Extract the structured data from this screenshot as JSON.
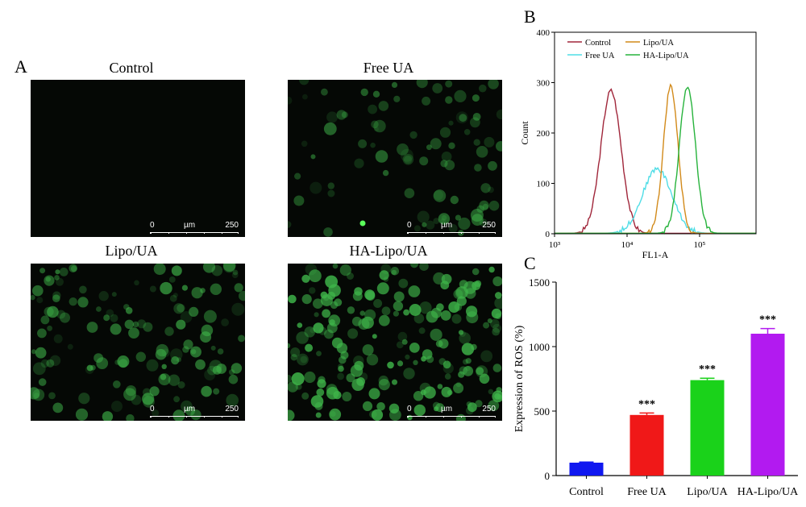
{
  "panels": {
    "a": "A",
    "b": "B",
    "c": "C"
  },
  "micrographs": [
    {
      "title": "Control",
      "intensity": 0.0,
      "scale": {
        "start": "0",
        "unit": "µm",
        "end": "250"
      }
    },
    {
      "title": "Free UA",
      "intensity": 0.35,
      "scale": {
        "start": "0",
        "unit": "µm",
        "end": "250"
      }
    },
    {
      "title": "Lipo/UA",
      "intensity": 0.55,
      "scale": {
        "start": "0",
        "unit": "µm",
        "end": "250"
      }
    },
    {
      "title": "HA-Lipo/UA",
      "intensity": 0.8,
      "scale": {
        "start": "0",
        "unit": "µm",
        "end": "250"
      }
    }
  ],
  "colors": {
    "micro_bg": "#050805",
    "cell": "#3fb64a"
  },
  "chart_data": [
    {
      "type": "line",
      "xlabel": "FL1-A",
      "ylabel": "Count",
      "xscale": "log",
      "xlim": [
        1000,
        600000
      ],
      "ylim": [
        0,
        400
      ],
      "yticks": [
        "0",
        "100",
        "200",
        "300",
        "400"
      ],
      "xticks": [
        {
          "v": 1000,
          "label": "10³"
        },
        {
          "v": 10000,
          "label": "10⁴"
        },
        {
          "v": 100000,
          "label": "10⁵"
        }
      ],
      "legend": "top-left",
      "series": [
        {
          "name": "Control",
          "color": "#a0263a",
          "peak_x": 6000,
          "peak_y": 283,
          "width": 0.14
        },
        {
          "name": "Free UA",
          "color": "#4fdde6",
          "peak_x": 26000,
          "peak_y": 128,
          "width": 0.2
        },
        {
          "name": "Lipo/UA",
          "color": "#d28a1a",
          "peak_x": 40000,
          "peak_y": 292,
          "width": 0.1
        },
        {
          "name": "HA-Lipo/UA",
          "color": "#27b33c",
          "peak_x": 68000,
          "peak_y": 293,
          "width": 0.11
        }
      ]
    },
    {
      "type": "bar",
      "ylabel": "Expression of ROS (%)",
      "ylim": [
        0,
        1500
      ],
      "yticks": [
        "0",
        "500",
        "1000",
        "1500"
      ],
      "categories": [
        "Control",
        "Free UA",
        "Lipo/UA",
        "HA-Lipo/UA"
      ],
      "values": [
        100,
        470,
        740,
        1100
      ],
      "errors": [
        5,
        15,
        15,
        40
      ],
      "colors": [
        "#1018f0",
        "#f01818",
        "#1ad21a",
        "#b21af0"
      ],
      "annotations": [
        "",
        "***",
        "***",
        "***"
      ]
    }
  ]
}
